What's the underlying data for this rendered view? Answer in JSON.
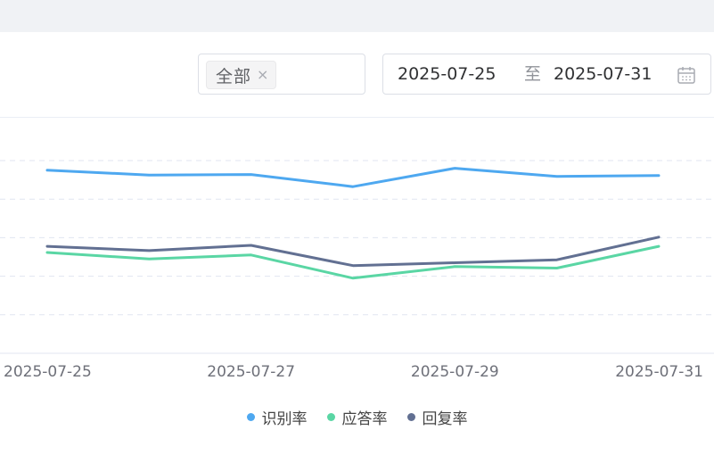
{
  "filter": {
    "tag_label": "全部",
    "tag_close": "×"
  },
  "date_range": {
    "start": "2025-07-25",
    "separator": "至",
    "end": "2025-07-31",
    "icon": "calendar-icon"
  },
  "chart_data": {
    "type": "line",
    "x": [
      "2025-07-25",
      "2025-07-26",
      "2025-07-27",
      "2025-07-28",
      "2025-07-29",
      "2025-07-30",
      "2025-07-31"
    ],
    "x_tick_labels": [
      "2025-07-25",
      "2025-07-27",
      "2025-07-29",
      "2025-07-31"
    ],
    "ylim": [
      0,
      100
    ],
    "y_gridlines": [
      20,
      40,
      60,
      80,
      100
    ],
    "grid": true,
    "legend_position": "bottom-center",
    "series": [
      {
        "name": "识别率",
        "color": "#4ea8f0",
        "values": [
          95.0,
          92.5,
          92.8,
          86.5,
          96.0,
          91.8,
          92.2
        ]
      },
      {
        "name": "应答率",
        "color": "#5ad6a4",
        "values": [
          52.3,
          49.0,
          51.0,
          39.0,
          45.0,
          44.2,
          55.5
        ]
      },
      {
        "name": "回复率",
        "color": "#627092",
        "values": [
          55.5,
          53.3,
          56.0,
          45.5,
          47.0,
          48.5,
          60.3
        ]
      }
    ]
  }
}
